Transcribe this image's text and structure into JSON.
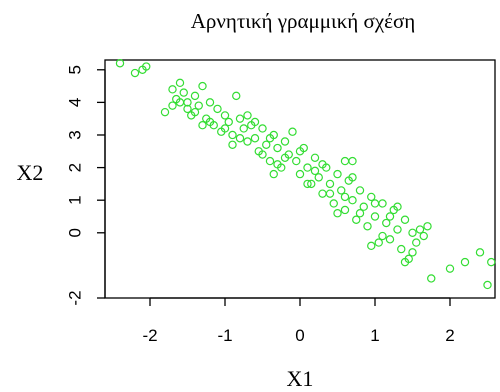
{
  "chart_data": {
    "type": "scatter",
    "title": "Αρνητική γραμμική σχέση",
    "xlabel": "X1",
    "ylabel": "X2",
    "xlim": [
      -2.6,
      2.6
    ],
    "ylim": [
      -2.0,
      5.3
    ],
    "x_ticks": [
      -2,
      -1,
      0,
      1,
      2
    ],
    "x_tick_labels": [
      "-2",
      "-1",
      "0",
      "1",
      "2"
    ],
    "y_ticks": [
      -2,
      0,
      1,
      2,
      3,
      4,
      5
    ],
    "y_tick_labels": [
      "-2",
      "0",
      "1",
      "2",
      "3",
      "4",
      "5"
    ],
    "grid": false,
    "marker": "open-circle",
    "color": "#33dd33",
    "points": [
      [
        -2.4,
        5.2
      ],
      [
        -2.2,
        4.9
      ],
      [
        -2.1,
        5.0
      ],
      [
        -2.05,
        5.1
      ],
      [
        -1.8,
        3.7
      ],
      [
        -1.7,
        4.4
      ],
      [
        -1.65,
        4.1
      ],
      [
        -1.6,
        4.6
      ],
      [
        -1.55,
        4.3
      ],
      [
        -1.5,
        4.0
      ],
      [
        -1.45,
        3.6
      ],
      [
        -1.4,
        4.2
      ],
      [
        -1.35,
        3.9
      ],
      [
        -1.3,
        4.5
      ],
      [
        -1.25,
        3.5
      ],
      [
        -1.2,
        4.0
      ],
      [
        -1.15,
        3.3
      ],
      [
        -1.1,
        3.8
      ],
      [
        -1.05,
        3.1
      ],
      [
        -1.0,
        3.6
      ],
      [
        -0.95,
        3.4
      ],
      [
        -0.9,
        3.0
      ],
      [
        -0.85,
        4.2
      ],
      [
        -0.8,
        3.5
      ],
      [
        -0.75,
        3.2
      ],
      [
        -0.7,
        2.8
      ],
      [
        -0.65,
        3.3
      ],
      [
        -0.6,
        2.9
      ],
      [
        -0.55,
        2.5
      ],
      [
        -0.5,
        3.2
      ],
      [
        -0.45,
        2.7
      ],
      [
        -0.4,
        2.2
      ],
      [
        -0.35,
        3.0
      ],
      [
        -0.3,
        2.6
      ],
      [
        -0.25,
        2.0
      ],
      [
        -0.2,
        2.8
      ],
      [
        -0.15,
        2.4
      ],
      [
        -0.1,
        3.1
      ],
      [
        -0.05,
        2.2
      ],
      [
        0.0,
        1.8
      ],
      [
        0.05,
        2.6
      ],
      [
        0.1,
        2.0
      ],
      [
        0.15,
        1.5
      ],
      [
        0.2,
        2.3
      ],
      [
        0.25,
        1.7
      ],
      [
        0.3,
        1.2
      ],
      [
        0.35,
        2.0
      ],
      [
        0.4,
        1.5
      ],
      [
        0.45,
        0.9
      ],
      [
        0.5,
        1.8
      ],
      [
        0.55,
        1.3
      ],
      [
        0.6,
        0.7
      ],
      [
        0.65,
        1.6
      ],
      [
        0.7,
        1.0
      ],
      [
        0.75,
        0.4
      ],
      [
        0.8,
        1.3
      ],
      [
        0.85,
        0.8
      ],
      [
        0.9,
        0.2
      ],
      [
        0.95,
        1.1
      ],
      [
        1.0,
        0.5
      ],
      [
        1.05,
        -0.3
      ],
      [
        1.1,
        0.9
      ],
      [
        1.15,
        0.3
      ],
      [
        1.2,
        -0.2
      ],
      [
        1.25,
        0.7
      ],
      [
        1.3,
        0.1
      ],
      [
        1.35,
        -0.5
      ],
      [
        1.4,
        0.4
      ],
      [
        1.45,
        -0.8
      ],
      [
        1.5,
        0.0
      ],
      [
        1.55,
        -0.3
      ],
      [
        1.6,
        0.1
      ],
      [
        1.65,
        -0.1
      ],
      [
        1.7,
        0.2
      ],
      [
        1.75,
        -1.4
      ],
      [
        2.0,
        -1.1
      ],
      [
        2.2,
        -0.9
      ],
      [
        2.4,
        -0.6
      ],
      [
        2.5,
        -1.6
      ],
      [
        2.55,
        -0.9
      ],
      [
        -1.6,
        4.0
      ],
      [
        -1.4,
        3.7
      ],
      [
        -1.2,
        3.4
      ],
      [
        -1.0,
        3.2
      ],
      [
        -0.8,
        2.9
      ],
      [
        -0.6,
        3.4
      ],
      [
        -0.4,
        2.9
      ],
      [
        -0.2,
        2.3
      ],
      [
        0.0,
        2.5
      ],
      [
        0.2,
        1.9
      ],
      [
        0.4,
        1.2
      ],
      [
        0.6,
        1.1
      ],
      [
        0.8,
        0.6
      ],
      [
        1.0,
        0.9
      ],
      [
        1.2,
        0.5
      ],
      [
        -1.7,
        3.9
      ],
      [
        -0.7,
        3.6
      ],
      [
        0.3,
        2.1
      ],
      [
        1.3,
        0.8
      ],
      [
        -1.3,
        3.3
      ],
      [
        -0.3,
        2.1
      ],
      [
        0.7,
        1.7
      ],
      [
        -0.9,
        2.7
      ],
      [
        0.1,
        1.5
      ],
      [
        1.1,
        -0.1
      ],
      [
        -1.5,
        3.8
      ],
      [
        -0.5,
        2.4
      ],
      [
        0.5,
        0.6
      ],
      [
        1.5,
        -0.6
      ],
      [
        0.6,
        2.2
      ],
      [
        0.7,
        2.2
      ],
      [
        -0.35,
        1.8
      ],
      [
        0.95,
        -0.4
      ],
      [
        1.4,
        -0.9
      ]
    ]
  }
}
